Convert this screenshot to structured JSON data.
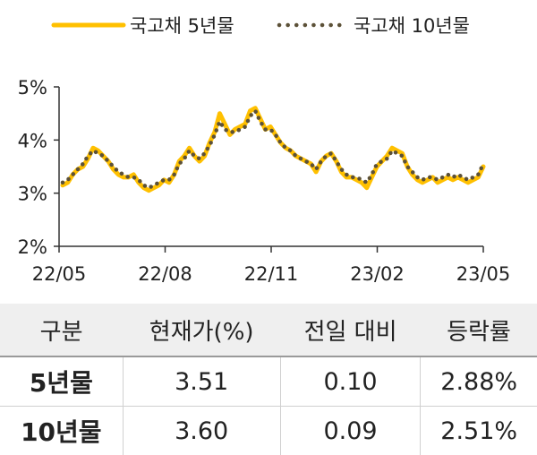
{
  "chart_data": {
    "type": "line",
    "title": "",
    "xlabel": "",
    "ylabel": "",
    "legend_position": "top",
    "ylim": [
      2,
      5
    ],
    "yticks": [
      "2%",
      "3%",
      "4%",
      "5%"
    ],
    "xticks": [
      "22/05",
      "22/08",
      "22/11",
      "23/02",
      "23/05"
    ],
    "x_start": "2022-05",
    "x_end": "2023-05",
    "series": [
      {
        "name": "국고채 5년물",
        "color": "#FFC000",
        "style": "solid",
        "values": [
          3.15,
          3.2,
          3.35,
          3.45,
          3.5,
          3.65,
          3.85,
          3.8,
          3.7,
          3.6,
          3.45,
          3.35,
          3.3,
          3.3,
          3.35,
          3.2,
          3.1,
          3.05,
          3.1,
          3.15,
          3.25,
          3.2,
          3.35,
          3.6,
          3.7,
          3.85,
          3.7,
          3.6,
          3.7,
          3.95,
          4.15,
          4.5,
          4.3,
          4.1,
          4.2,
          4.25,
          4.3,
          4.55,
          4.6,
          4.4,
          4.2,
          4.25,
          4.1,
          3.95,
          3.85,
          3.8,
          3.7,
          3.65,
          3.6,
          3.55,
          3.4,
          3.6,
          3.7,
          3.75,
          3.6,
          3.4,
          3.3,
          3.3,
          3.25,
          3.2,
          3.1,
          3.3,
          3.5,
          3.6,
          3.7,
          3.85,
          3.8,
          3.75,
          3.5,
          3.35,
          3.25,
          3.2,
          3.25,
          3.3,
          3.2,
          3.25,
          3.3,
          3.25,
          3.3,
          3.25,
          3.2,
          3.25,
          3.3,
          3.5
        ]
      },
      {
        "name": "국고채 10년물",
        "color": "#5C5138",
        "style": "dotted",
        "values": [
          3.2,
          3.25,
          3.35,
          3.45,
          3.55,
          3.7,
          3.8,
          3.75,
          3.7,
          3.6,
          3.5,
          3.4,
          3.35,
          3.3,
          3.3,
          3.25,
          3.15,
          3.1,
          3.15,
          3.2,
          3.25,
          3.25,
          3.35,
          3.55,
          3.65,
          3.8,
          3.7,
          3.65,
          3.75,
          3.9,
          4.1,
          4.35,
          4.2,
          4.15,
          4.15,
          4.2,
          4.25,
          4.45,
          4.55,
          4.35,
          4.2,
          4.2,
          4.1,
          3.95,
          3.85,
          3.8,
          3.7,
          3.65,
          3.6,
          3.55,
          3.45,
          3.6,
          3.7,
          3.75,
          3.6,
          3.45,
          3.35,
          3.3,
          3.3,
          3.25,
          3.2,
          3.35,
          3.55,
          3.6,
          3.65,
          3.8,
          3.75,
          3.7,
          3.5,
          3.4,
          3.3,
          3.25,
          3.3,
          3.3,
          3.25,
          3.3,
          3.35,
          3.3,
          3.35,
          3.3,
          3.25,
          3.3,
          3.35,
          3.55
        ]
      }
    ]
  },
  "table": {
    "headers": [
      "구분",
      "현재가(%)",
      "전일 대비",
      "등락률"
    ],
    "rows": [
      [
        "5년물",
        "3.51",
        "0.10",
        "2.88%"
      ],
      [
        "10년물",
        "3.60",
        "0.09",
        "2.51%"
      ]
    ]
  }
}
